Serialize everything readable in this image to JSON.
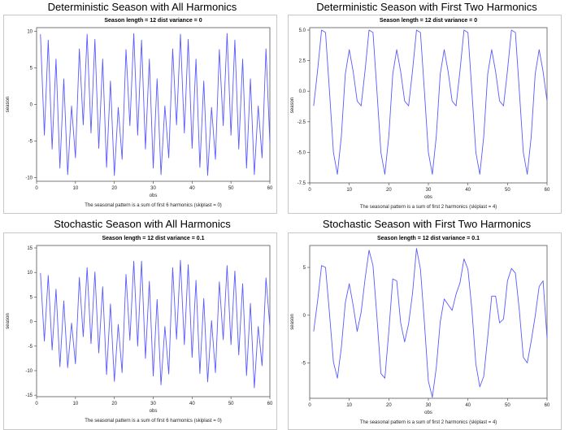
{
  "chart_data": [
    {
      "type": "line",
      "title": "Deterministic Season with All Harmonics",
      "subtitle": "Season length = 12 dist variance = 0",
      "xlabel": "obs",
      "ylabel": "season",
      "footnote": "The seasonal pattern is a sum of first 6 harmonics (skiplast = 0)",
      "xlim": [
        0,
        60
      ],
      "ylim": [
        -10.5,
        10.5
      ],
      "xticks": [
        "0",
        "10",
        "20",
        "30",
        "40",
        "50",
        "60"
      ],
      "yticks": [
        "10",
        "5",
        "0",
        "-5",
        "-10"
      ],
      "ytick_values": [
        10,
        5,
        0,
        -5,
        -10
      ],
      "grid": false,
      "series": [
        {
          "color": "#5a5aff",
          "x": [
            1,
            2,
            3,
            4,
            5,
            6,
            7,
            8,
            9,
            10,
            11,
            12,
            13,
            14,
            15,
            16,
            17,
            18,
            19,
            20,
            21,
            22,
            23,
            24,
            25,
            26,
            27,
            28,
            29,
            30,
            31,
            32,
            33,
            34,
            35,
            36,
            37,
            38,
            39,
            40,
            41,
            42,
            43,
            44,
            45,
            46,
            47,
            48,
            49,
            50,
            51,
            52,
            53,
            54,
            55,
            56,
            57,
            58,
            59,
            60
          ],
          "y": [
            9.6,
            -4.2,
            8.8,
            -6.1,
            6.2,
            -8.7,
            3.5,
            -9.6,
            -0.2,
            -7.3,
            7.6,
            -2.8,
            9.6,
            -3.9,
            8.9,
            -6.0,
            6.2,
            -8.6,
            3.2,
            -9.7,
            -0.4,
            -7.5,
            7.5,
            -2.9,
            9.7,
            -4.2,
            8.8,
            -6.1,
            6.2,
            -8.7,
            3.5,
            -9.6,
            -0.2,
            -7.3,
            7.6,
            -2.8,
            9.6,
            -3.9,
            8.9,
            -6.0,
            6.2,
            -8.6,
            3.2,
            -9.7,
            -0.4,
            -7.5,
            7.5,
            -2.9,
            9.7,
            -4.2,
            8.8,
            -6.1,
            6.2,
            -8.7,
            3.5,
            -9.6,
            -0.2,
            -7.3,
            7.6,
            -5.2
          ]
        }
      ]
    },
    {
      "type": "line",
      "title": "Deterministic Season with First Two Harmonics",
      "subtitle": "Season length = 12 dist variance = 0",
      "xlabel": "obs",
      "ylabel": "season",
      "footnote": "The seasonal pattern is a sum of first 2 harmonics (skiplast = 4)",
      "xlim": [
        0,
        60
      ],
      "ylim": [
        -7.5,
        5.2
      ],
      "xticks": [
        "0",
        "10",
        "20",
        "30",
        "40",
        "50",
        "60"
      ],
      "yticks": [
        "5.0",
        "2.5",
        "0.0",
        "-2.5",
        "-5.0",
        "-7.5"
      ],
      "ytick_values": [
        5,
        2.5,
        0,
        -2.5,
        -5,
        -7.5
      ],
      "grid": false,
      "series": [
        {
          "color": "#5a5aff",
          "x": [
            1,
            2,
            3,
            4,
            5,
            6,
            7,
            8,
            9,
            10,
            11,
            12,
            13,
            14,
            15,
            16,
            17,
            18,
            19,
            20,
            21,
            22,
            23,
            24,
            25,
            26,
            27,
            28,
            29,
            30,
            31,
            32,
            33,
            34,
            35,
            36,
            37,
            38,
            39,
            40,
            41,
            42,
            43,
            44,
            45,
            46,
            47,
            48,
            49,
            50,
            51,
            52,
            53,
            54,
            55,
            56,
            57,
            58,
            59,
            60
          ],
          "y": [
            -1.2,
            1.7,
            5.0,
            4.8,
            0.0,
            -5.0,
            -6.8,
            -3.7,
            1.4,
            3.4,
            1.6,
            -0.8,
            -1.2,
            1.7,
            5.0,
            4.8,
            0.0,
            -5.0,
            -6.8,
            -3.7,
            1.4,
            3.4,
            1.6,
            -0.8,
            -1.2,
            1.7,
            5.0,
            4.8,
            0.0,
            -5.0,
            -6.8,
            -3.7,
            1.4,
            3.4,
            1.6,
            -0.8,
            -1.2,
            1.7,
            5.0,
            4.8,
            0.0,
            -5.0,
            -6.8,
            -3.7,
            1.4,
            3.4,
            1.6,
            -0.8,
            -1.2,
            1.7,
            5.0,
            4.8,
            0.0,
            -5.0,
            -6.8,
            -3.7,
            1.4,
            3.4,
            1.6,
            -0.8
          ]
        }
      ]
    },
    {
      "type": "line",
      "title": "Stochastic Season with All Harmonics",
      "subtitle": "Season length = 12 dist variance = 0.1",
      "xlabel": "obs",
      "ylabel": "season",
      "footnote": "The seasonal pattern is a sum of first 6 harmonics (skiplast = 0)",
      "xlim": [
        0,
        60
      ],
      "ylim": [
        -15.3,
        15.5
      ],
      "xticks": [
        "0",
        "10",
        "20",
        "30",
        "40",
        "50",
        "60"
      ],
      "yticks": [
        "15",
        "10",
        "5",
        "0",
        "-5",
        "-10",
        "-15"
      ],
      "ytick_values": [
        15,
        10,
        5,
        0,
        -5,
        -10,
        -15
      ],
      "grid": false,
      "series": [
        {
          "color": "#5a5aff",
          "x": [
            1,
            2,
            3,
            4,
            5,
            6,
            7,
            8,
            9,
            10,
            11,
            12,
            13,
            14,
            15,
            16,
            17,
            18,
            19,
            20,
            21,
            22,
            23,
            24,
            25,
            26,
            27,
            28,
            29,
            30,
            31,
            32,
            33,
            34,
            35,
            36,
            37,
            38,
            39,
            40,
            41,
            42,
            43,
            44,
            45,
            46,
            47,
            48,
            49,
            50,
            51,
            52,
            53,
            54,
            55,
            56,
            57,
            58,
            59,
            60
          ],
          "y": [
            9.9,
            -4.0,
            9.4,
            -5.8,
            6.6,
            -9.2,
            4.2,
            -9.4,
            -0.3,
            -8.6,
            9.0,
            -3.1,
            11.0,
            -4.5,
            10.1,
            -6.4,
            7.1,
            -10.8,
            3.6,
            -12.2,
            -0.6,
            -10.4,
            9.6,
            -3.8,
            12.3,
            -5.0,
            12.3,
            -7.5,
            8.2,
            -11.1,
            4.5,
            -12.9,
            -1.0,
            -10.7,
            11.0,
            -3.6,
            12.5,
            -4.7,
            11.6,
            -7.3,
            8.4,
            -10.6,
            4.7,
            -12.3,
            0.2,
            -10.4,
            8.1,
            -3.7,
            11.4,
            -4.7,
            10.3,
            -6.8,
            7.7,
            -11.0,
            3.7,
            -13.5,
            -1.0,
            -9.0,
            8.9,
            -1.0
          ]
        }
      ]
    },
    {
      "type": "line",
      "title": "Stochastic Season with First Two Harmonics",
      "subtitle": "Season length = 12 dist variance = 0.1",
      "xlabel": "obs",
      "ylabel": "season",
      "footnote": "The seasonal pattern is a sum of first 2 harmonics (skiplast = 4)",
      "xlim": [
        0,
        60
      ],
      "ylim": [
        -8.7,
        7.3
      ],
      "xticks": [
        "0",
        "10",
        "20",
        "30",
        "40",
        "50",
        "60"
      ],
      "yticks": [
        "5",
        "0",
        "-5"
      ],
      "ytick_values": [
        5,
        0,
        -5
      ],
      "grid": false,
      "series": [
        {
          "color": "#5a5aff",
          "x": [
            1,
            2,
            3,
            4,
            5,
            6,
            7,
            8,
            9,
            10,
            11,
            12,
            13,
            14,
            15,
            16,
            17,
            18,
            19,
            20,
            21,
            22,
            23,
            24,
            25,
            26,
            27,
            28,
            29,
            30,
            31,
            32,
            33,
            34,
            35,
            36,
            37,
            38,
            39,
            40,
            41,
            42,
            43,
            44,
            45,
            46,
            47,
            48,
            49,
            50,
            51,
            52,
            53,
            54,
            55,
            56,
            57,
            58,
            59,
            60
          ],
          "y": [
            -1.7,
            1.5,
            5.2,
            5.0,
            0.2,
            -4.9,
            -6.6,
            -3.4,
            1.3,
            3.3,
            1.0,
            -1.7,
            0.3,
            3.8,
            6.8,
            5.2,
            -0.2,
            -6.1,
            -6.6,
            -1.7,
            3.8,
            3.6,
            -0.8,
            -2.8,
            -0.9,
            2.3,
            7.0,
            4.8,
            -0.8,
            -6.9,
            -8.6,
            -5.5,
            -0.7,
            1.7,
            1.1,
            0.5,
            2.2,
            3.4,
            5.9,
            4.8,
            0.6,
            -5.1,
            -7.5,
            -6.4,
            -2.3,
            2.0,
            2.0,
            -0.8,
            -0.4,
            3.6,
            4.9,
            4.4,
            0.5,
            -4.4,
            -5.0,
            -2.7,
            -0.1,
            3.0,
            3.6,
            -2.4
          ]
        }
      ]
    }
  ]
}
